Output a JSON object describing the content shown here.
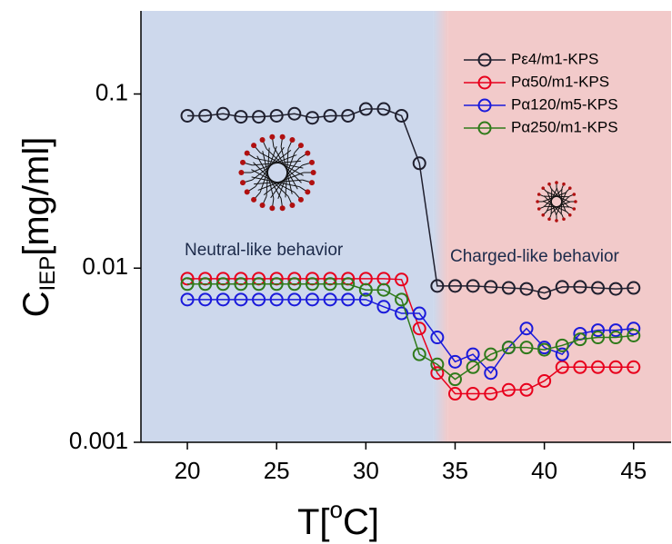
{
  "chart_data": {
    "type": "line",
    "log_y": true,
    "x_label": {
      "main": "T[",
      "sup": "o",
      "rest": "C]"
    },
    "y_label": {
      "main": "C",
      "sub": "IEP",
      "rest": "[mg/ml]"
    },
    "x": [
      20,
      21,
      22,
      23,
      24,
      25,
      26,
      27,
      28,
      29,
      30,
      31,
      32,
      33,
      34,
      35,
      36,
      37,
      38,
      39,
      40,
      41,
      42,
      43,
      44,
      45
    ],
    "xlim": [
      17.4,
      47.1
    ],
    "xticks": [
      20,
      25,
      30,
      35,
      40,
      45
    ],
    "ylim": [
      0.001,
      0.3
    ],
    "yticks": [
      0.001,
      0.01,
      0.1
    ],
    "regions": [
      {
        "label": "Neutral-like behavior",
        "from": 17.4,
        "to": 33.8,
        "color": "#cdd8ec"
      },
      {
        "label": "Charged-like behavior",
        "from": 34.6,
        "to": 47.1,
        "color": "#f2caca"
      }
    ],
    "legend": "upper right",
    "series": [
      {
        "name": "Pε4/m1-KPS",
        "color": "#1f1f2e",
        "values": [
          0.075,
          0.075,
          0.077,
          0.074,
          0.074,
          0.075,
          0.077,
          0.073,
          0.075,
          0.075,
          0.082,
          0.082,
          0.075,
          0.04,
          0.0079,
          0.0079,
          0.0079,
          0.0078,
          0.0077,
          0.0076,
          0.0072,
          0.0078,
          0.0078,
          0.0077,
          0.0076,
          0.0077
        ]
      },
      {
        "name": "Pα50/m1-KPS",
        "color": "#e8001c",
        "values": [
          0.0087,
          0.0087,
          0.0087,
          0.0087,
          0.0087,
          0.0087,
          0.0087,
          0.0087,
          0.0087,
          0.0087,
          0.0087,
          0.0087,
          0.0086,
          0.0045,
          0.0025,
          0.0019,
          0.0019,
          0.0019,
          0.002,
          0.002,
          0.00225,
          0.0027,
          0.0027,
          0.0027,
          0.0027,
          0.0027
        ]
      },
      {
        "name": "Pα120/m5-KPS",
        "color": "#1a1adb",
        "values": [
          0.0066,
          0.0066,
          0.0066,
          0.0066,
          0.0066,
          0.0066,
          0.0066,
          0.0066,
          0.0066,
          0.0066,
          0.0066,
          0.006,
          0.0055,
          0.0055,
          0.004,
          0.0029,
          0.0032,
          0.0025,
          0.0035,
          0.0045,
          0.0035,
          0.0032,
          0.0042,
          0.0044,
          0.0044,
          0.0045
        ]
      },
      {
        "name": "Pα250/m1-KPS",
        "color": "#2f7a1a",
        "values": [
          0.0081,
          0.0081,
          0.0081,
          0.0081,
          0.0081,
          0.0081,
          0.0081,
          0.0081,
          0.0081,
          0.0081,
          0.0075,
          0.0075,
          0.0066,
          0.0032,
          0.0028,
          0.0023,
          0.0027,
          0.0032,
          0.0035,
          0.0035,
          0.0034,
          0.0036,
          0.0039,
          0.004,
          0.004,
          0.0041
        ]
      }
    ]
  }
}
